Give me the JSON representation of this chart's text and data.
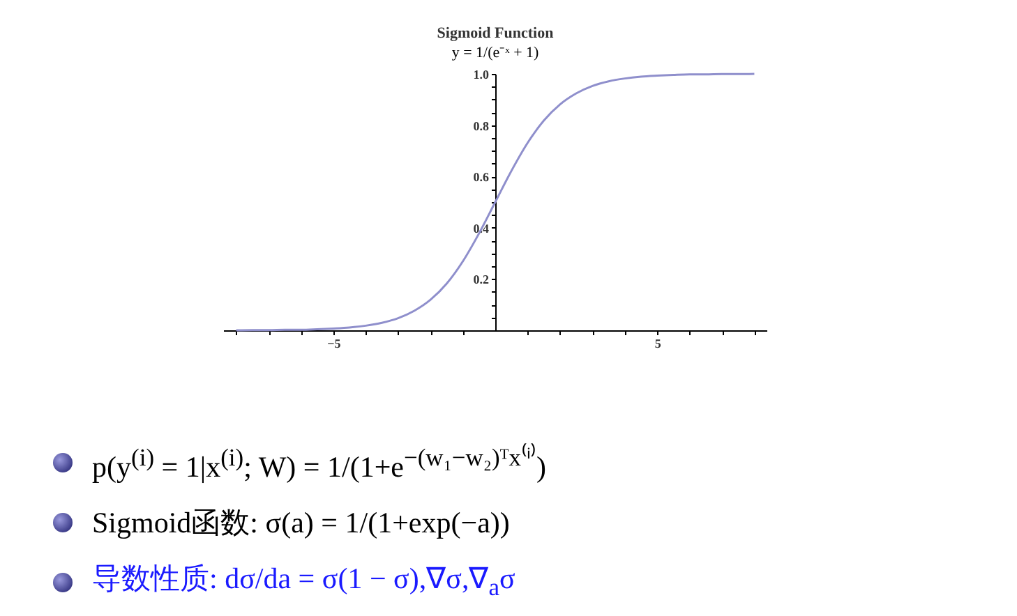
{
  "chart_data": {
    "type": "line",
    "title": "Sigmoid Function",
    "subtitle": "y = 1/(e⁻ˣ + 1)",
    "x": [
      -8,
      -7.5,
      -7,
      -6.5,
      -6,
      -5.5,
      -5,
      -4.5,
      -4,
      -3.5,
      -3,
      -2.5,
      -2,
      -1.5,
      -1,
      -0.5,
      0,
      0.5,
      1,
      1.5,
      2,
      2.5,
      3,
      3.5,
      4,
      4.5,
      5,
      5.5,
      6,
      6.5,
      7,
      7.5,
      8
    ],
    "series": [
      {
        "color": "#8f8fcc",
        "values": [
          0.0,
          0.001,
          0.001,
          0.002,
          0.002,
          0.004,
          0.007,
          0.011,
          0.018,
          0.029,
          0.047,
          0.076,
          0.119,
          0.182,
          0.269,
          0.378,
          0.5,
          0.622,
          0.731,
          0.818,
          0.881,
          0.924,
          0.953,
          0.971,
          0.982,
          0.989,
          0.993,
          0.996,
          0.998,
          0.998,
          0.999,
          0.999,
          1.0
        ]
      }
    ],
    "xlim": [
      -8.4,
      8.4
    ],
    "xticks": [
      {
        "value": -8,
        "label": null
      },
      {
        "value": -7,
        "label": null
      },
      {
        "value": -6,
        "label": null
      },
      {
        "value": -5,
        "label": "−5"
      },
      {
        "value": -4,
        "label": null
      },
      {
        "value": -3,
        "label": null
      },
      {
        "value": -2,
        "label": null
      },
      {
        "value": -1,
        "label": null
      },
      {
        "value": 1,
        "label": null
      },
      {
        "value": 2,
        "label": null
      },
      {
        "value": 3,
        "label": null
      },
      {
        "value": 4,
        "label": null
      },
      {
        "value": 5,
        "label": "5"
      },
      {
        "value": 6,
        "label": null
      },
      {
        "value": 7,
        "label": null
      },
      {
        "value": 8,
        "label": null
      }
    ],
    "ylim": [
      0,
      1
    ],
    "yticks": [
      {
        "value": 0.05,
        "label": null
      },
      {
        "value": 0.1,
        "label": null
      },
      {
        "value": 0.15,
        "label": null
      },
      0.2,
      {
        "value": 0.25,
        "label": null
      },
      {
        "value": 0.3,
        "label": null
      },
      {
        "value": 0.35,
        "label": null
      },
      0.4,
      {
        "value": 0.45,
        "label": null
      },
      {
        "value": 0.5,
        "label": null
      },
      {
        "value": 0.55,
        "label": null
      },
      0.6,
      {
        "value": 0.65,
        "label": null
      },
      {
        "value": 0.7,
        "label": null
      },
      {
        "value": 0.75,
        "label": null
      },
      0.8,
      {
        "value": 0.85,
        "label": null
      },
      {
        "value": 0.9,
        "label": null
      },
      {
        "value": 0.95,
        "label": null
      },
      {
        "value": 1,
        "label": "1.0"
      }
    ],
    "grid": false,
    "marker": "none",
    "line_style": "solid",
    "annotations": [
      "p(y$^{(i)}$ = 1|x$^{(i)}$; W) = 1/(1+e$^{−(w₁−w₂)ᵀx⁽ⁱ⁾}$)",
      "Sigmoid函数: σ(a) = 1/(1+exp(−a))",
      "导数性质: dσ/da = σ(1 − σ),∇σ,∇$_{a}$σ"
    ]
  }
}
